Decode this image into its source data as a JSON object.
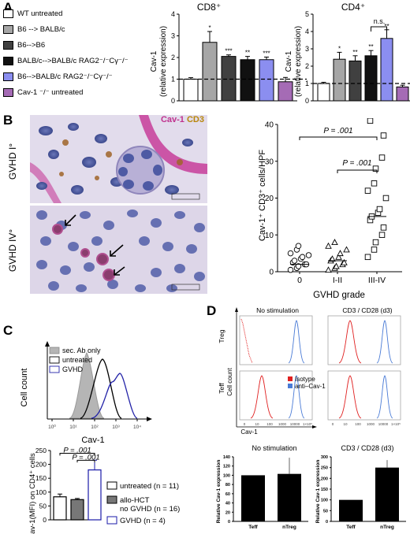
{
  "panels": {
    "A": "A",
    "B": "B",
    "C": "C",
    "D": "D"
  },
  "panelA": {
    "legend": [
      {
        "label": "WT untreated",
        "color": "#ffffff"
      },
      {
        "label": "B6 --> BALB/c",
        "color": "#a6a6a6"
      },
      {
        "label": "B6-->B6",
        "color": "#404040"
      },
      {
        "label": "BALB/c-->BALB/c RAG2⁻/⁻Cγ⁻/⁻",
        "color": "#111111"
      },
      {
        "label": "B6-->BALB/c RAG2⁻/⁻Cγ⁻/⁻",
        "color": "#8b8ef0"
      },
      {
        "label": "Cav-1 ⁻/⁻ untreated",
        "color": "#a56bb5"
      }
    ],
    "cd8_title": "CD8⁺",
    "cd4_title": "CD4⁺",
    "ylabel_line1": "Cav-1",
    "ylabel_line2": "(relative expression)",
    "ns_label": "n.s."
  },
  "chart_data": [
    {
      "type": "bar",
      "title": "CD8⁺",
      "ylabel": "Cav-1 (relative expression)",
      "ylim": [
        0,
        4
      ],
      "yticks": [
        0,
        1,
        2,
        3,
        4
      ],
      "reference_line": 1,
      "categories": [
        "WT untreated",
        "B6 --> BALB/c",
        "B6-->B6",
        "BALB/c-->BALB/c RAG2-/-Cγ-/-",
        "B6-->BALB/c RAG2-/-Cγ-/-",
        "Cav-1 -/- untreated"
      ],
      "values": [
        1.0,
        2.7,
        2.05,
        1.9,
        1.9,
        0.88
      ],
      "errors": [
        0.07,
        0.5,
        0.07,
        0.15,
        0.12,
        0.2
      ],
      "significance": [
        "",
        "*",
        "***",
        "**",
        "***",
        ""
      ]
    },
    {
      "type": "bar",
      "title": "CD4⁺",
      "ylabel": "Cav-1 (relative expression)",
      "ylim": [
        0,
        5
      ],
      "yticks": [
        0,
        1,
        2,
        3,
        4,
        5
      ],
      "reference_line": 1,
      "categories": [
        "WT untreated",
        "B6 --> BALB/c",
        "B6-->B6",
        "BALB/c-->BALB/c RAG2-/-Cγ-/-",
        "B6-->BALB/c RAG2-/-Cγ-/-",
        "Cav-1 -/- untreated"
      ],
      "values": [
        1.0,
        2.4,
        2.3,
        2.6,
        3.6,
        0.8
      ],
      "errors": [
        0.07,
        0.4,
        0.3,
        0.3,
        0.5,
        0.1
      ],
      "significance": [
        "",
        "*",
        "**",
        "**",
        "**",
        ""
      ],
      "bracket": {
        "from": 3,
        "to": 4,
        "label": "n.s."
      }
    },
    {
      "type": "scatter",
      "ylabel": "Cav-1⁺ CD3⁺ cells/HPF",
      "xlabel": "GVHD grade",
      "ylim": [
        0,
        40
      ],
      "yticks": [
        0,
        10,
        20,
        30,
        40
      ],
      "categories": [
        "0",
        "I-II",
        "III-IV"
      ],
      "groups": [
        {
          "category": "0",
          "marker": "circle",
          "values": [
            0.5,
            1,
            1.5,
            2,
            2,
            2.5,
            3,
            3.5,
            4,
            4.5,
            5,
            6,
            7
          ],
          "median": 2
        },
        {
          "category": "I-II",
          "marker": "triangle",
          "values": [
            0.5,
            1,
            1.5,
            2,
            2.5,
            3,
            3.5,
            4,
            5,
            6,
            7,
            8
          ],
          "median": 3
        },
        {
          "category": "III-IV",
          "marker": "square",
          "values": [
            4,
            6,
            8,
            10,
            12,
            14,
            15,
            16,
            17,
            20,
            22,
            24,
            28,
            31,
            37,
            41
          ],
          "median": 15
        }
      ],
      "annotations": [
        {
          "label": "P = .001",
          "from": "0",
          "to": "III-IV"
        },
        {
          "label": "P = .001",
          "from": "I-II",
          "to": "III-IV"
        }
      ]
    },
    {
      "type": "bar",
      "ylabel": "Cav-1(MFI) on CD4⁺ cells",
      "ylim": [
        0,
        250
      ],
      "yticks": [
        0,
        50,
        100,
        150,
        200,
        250
      ],
      "categories": [
        "untreated",
        "allo-HCT no GVHD",
        "GVHD"
      ],
      "values": [
        83,
        73,
        180
      ],
      "errors": [
        10,
        4,
        35
      ],
      "legend": [
        "untreated (n = 11)",
        "allo-HCT no GVHD (n = 16)",
        "GVHD (n = 4)"
      ],
      "annotations": [
        {
          "label": "P = .001",
          "from": "untreated",
          "to": "GVHD"
        },
        {
          "label": "P = .001",
          "from": "allo-HCT no GVHD",
          "to": "GVHD"
        }
      ]
    },
    {
      "type": "bar",
      "title": "No stimulation",
      "ylabel": "Relative Cav-1 expression",
      "ylim": [
        0,
        140
      ],
      "yticks": [
        0,
        20,
        40,
        60,
        80,
        100,
        120,
        140
      ],
      "categories": [
        "Teff",
        "nTreg"
      ],
      "values": [
        100,
        103
      ],
      "errors": [
        0,
        35
      ]
    },
    {
      "type": "bar",
      "title": "CD3 / CD28 (d3)",
      "ylabel": "Relative Cav-1 expression",
      "ylim": [
        0,
        300
      ],
      "yticks": [
        0,
        50,
        100,
        150,
        200,
        250,
        300
      ],
      "categories": [
        "Teff",
        "nTreg"
      ],
      "values": [
        100,
        250
      ],
      "errors": [
        0,
        35
      ]
    }
  ],
  "panelB": {
    "stain_cav1": "Cav-1",
    "stain_cd3": "CD3",
    "row1": "GVHD I°",
    "row2": "GVHD IV°",
    "scatter_ylabel": "Cav-1⁺ CD3⁺ cells/HPF",
    "scatter_xlabel": "GVHD grade",
    "xticks": [
      "0",
      "I-II",
      "III-IV"
    ],
    "yticks": [
      "0",
      "10",
      "20",
      "30",
      "40"
    ],
    "p1": "P = .001",
    "p2": "P = .001"
  },
  "panelC": {
    "hist_legend": [
      "sec. Ab only",
      "untreated",
      "GVHD"
    ],
    "hist_xlabel": "Cav-1",
    "hist_ylabel": "Cell count",
    "hist_xticks": [
      "10⁰",
      "10¹",
      "10²",
      "10³",
      "10⁴"
    ],
    "bar_ylabel": "Cav-1(MFI) on CD4⁺ cells",
    "yticks": [
      "0",
      "50",
      "100",
      "150",
      "200",
      "250"
    ],
    "legend": [
      {
        "label": "untreated (n = 11)",
        "color": "#ffffff",
        "edge": "#000000"
      },
      {
        "label": "allo-HCT",
        "label2": "no GVHD (n = 16)",
        "color": "#777777",
        "edge": "#000000"
      },
      {
        "label": "GVHD (n = 4)",
        "color": "#ffffff",
        "edge": "#1a1aa8"
      }
    ],
    "p1": "P = .001",
    "p2": "P = .001"
  },
  "panelD": {
    "col1": "No stimulation",
    "col2": "CD3 / CD28 (d3)",
    "row1": "Treg",
    "row2": "Teff",
    "ylabel": "Cell count",
    "xlabel": "Cav-1",
    "legend": [
      {
        "label": "Isotype",
        "color": "#e02020"
      },
      {
        "label": "anti–Cav-1",
        "color": "#4a7bd6"
      }
    ],
    "hist_xticks": [
      "0",
      "10",
      "100",
      "1000",
      "10000",
      "1×10⁵"
    ],
    "bar1_title": "No stimulation",
    "bar2_title": "CD3 / CD28 (d3)",
    "bar_ylabel": "Relative Cav-1 expression",
    "bar_cats": [
      "Teff",
      "nTreg"
    ],
    "bar1_yticks": [
      "0",
      "20",
      "40",
      "60",
      "80",
      "100",
      "120",
      "140"
    ],
    "bar2_yticks": [
      "0",
      "50",
      "100",
      "150",
      "200",
      "250",
      "300"
    ]
  }
}
